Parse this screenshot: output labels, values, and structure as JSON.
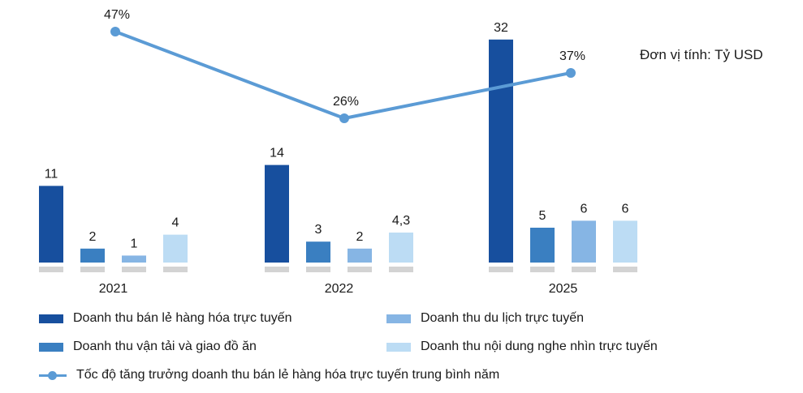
{
  "chart_data": {
    "type": "bar",
    "categories": [
      "2021",
      "2022",
      "2025"
    ],
    "series": [
      {
        "name": "Doanh thu bán lẻ hàng hóa trực tuyến",
        "values": [
          11,
          14,
          32
        ],
        "labels": [
          "11",
          "14",
          "32"
        ],
        "color": "#174f9e"
      },
      {
        "name": "Doanh thu vận tải và giao đồ ăn",
        "values": [
          2,
          3,
          5
        ],
        "labels": [
          "2",
          "3",
          "5"
        ],
        "color": "#3a7fc1"
      },
      {
        "name": "Doanh thu du lịch trực tuyến",
        "values": [
          1,
          2,
          6
        ],
        "labels": [
          "1",
          "2",
          "6"
        ],
        "color": "#86b5e4"
      },
      {
        "name": "Doanh thu nội dung nghe nhìn trực tuyến",
        "values": [
          4,
          4.3,
          6
        ],
        "labels": [
          "4",
          "4,3",
          "6"
        ],
        "color": "#bcdcf4"
      }
    ],
    "line_series": {
      "name": "Tốc độ tăng trưởng doanh thu bán lẻ hàng hóa trực tuyến  trung bình năm",
      "values": [
        47,
        26,
        37
      ],
      "labels": [
        "47%",
        "26%",
        "37%"
      ],
      "color": "#5b9bd5"
    },
    "unit_label": "Đơn vị tính: Tỷ USD",
    "baseline_color": "#d3d3d3"
  }
}
